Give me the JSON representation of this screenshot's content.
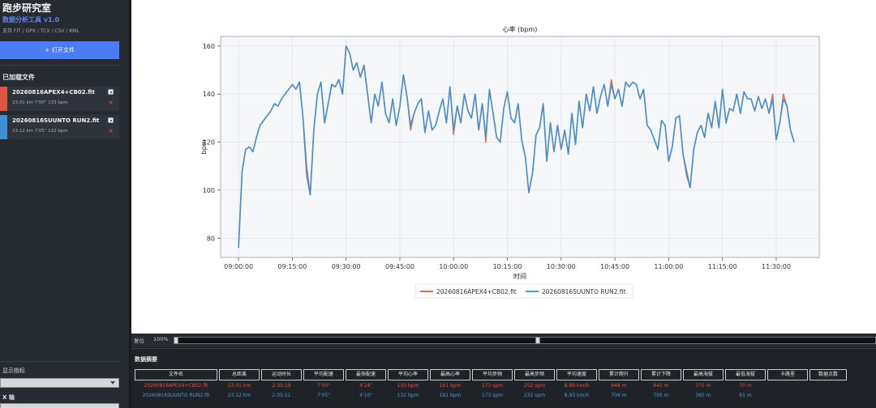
{
  "app": {
    "title": "跑步研究室",
    "subtitle": "数据分析工具 v1.0",
    "formats": "支持 FIT / GPX / TCX / CSV / KML",
    "open_button": "打开文件",
    "open_icon": "plus-icon"
  },
  "sidebar": {
    "loaded_title": "已加载文件",
    "files": [
      {
        "name": "20260816APEX4+CB02.fit",
        "meta": "23.01 km  7'00\"  133 bpm",
        "color": "#e0553f",
        "checked": true
      },
      {
        "name": "20260816SUUNTO RUN2.fit",
        "meta": "23.12 km  7'05\"  132 bpm",
        "color": "#3d8fd6",
        "checked": true
      }
    ],
    "metric_label": "显示指标",
    "metric_value": "",
    "xaxis_label": "X 轴",
    "xaxis_value": ""
  },
  "chart_data": {
    "type": "line",
    "title": "心率 (bpm)",
    "xlabel": "时间",
    "ylabel": "bpm",
    "x_ticks": [
      "09:00:00",
      "09:15:00",
      "09:30:00",
      "09:45:00",
      "10:00:00",
      "10:15:00",
      "10:30:00",
      "10:45:00",
      "11:00:00",
      "11:15:00",
      "11:30:00"
    ],
    "y_ticks": [
      80,
      100,
      120,
      140,
      160
    ],
    "xlim_min": [
      -5,
      162
    ],
    "ylim": [
      72,
      164
    ],
    "grid": true,
    "legend_position": "bottom-center",
    "series": [
      {
        "name": "20260816APEX4+CB02.fit",
        "color": "#e0553f",
        "x": [
          0,
          1,
          2,
          3,
          4,
          5,
          6,
          7,
          8,
          9,
          10,
          11,
          12,
          13,
          14,
          15,
          16,
          17,
          18,
          19,
          20,
          21,
          22,
          23,
          24,
          25,
          26,
          27,
          28,
          29,
          30,
          31,
          32,
          33,
          34,
          35,
          36,
          37,
          38,
          39,
          40,
          41,
          42,
          43,
          44,
          45,
          46,
          47,
          48,
          49,
          50,
          51,
          52,
          53,
          54,
          55,
          56,
          57,
          58,
          59,
          60,
          61,
          62,
          63,
          64,
          65,
          66,
          67,
          68,
          69,
          70,
          71,
          72,
          73,
          74,
          75,
          76,
          77,
          78,
          79,
          80,
          81,
          82,
          83,
          84,
          85,
          86,
          87,
          88,
          89,
          90,
          91,
          92,
          93,
          94,
          95,
          96,
          97,
          98,
          99,
          100,
          101,
          102,
          103,
          104,
          105,
          106,
          107,
          108,
          109,
          110,
          111,
          112,
          113,
          114,
          115,
          116,
          117,
          118,
          119,
          120,
          121,
          122,
          123,
          124,
          125,
          126,
          127,
          128,
          129,
          130,
          131,
          132,
          133,
          134,
          135,
          136,
          137,
          138,
          139,
          140,
          141,
          142,
          143,
          144,
          145,
          146,
          147,
          148,
          149,
          150,
          151,
          152,
          153,
          154,
          155
        ],
        "y": [
          76,
          108,
          117,
          118,
          116,
          122,
          127,
          129,
          131,
          133,
          136,
          135,
          138,
          140,
          142,
          144,
          142,
          145,
          130,
          110,
          98,
          125,
          140,
          145,
          128,
          136,
          144,
          143,
          146,
          140,
          160,
          157,
          150,
          153,
          147,
          152,
          140,
          128,
          140,
          135,
          145,
          132,
          128,
          138,
          127,
          135,
          148,
          139,
          125,
          132,
          136,
          138,
          124,
          133,
          125,
          127,
          133,
          138,
          128,
          143,
          123,
          135,
          128,
          140,
          133,
          130,
          140,
          125,
          136,
          120,
          142,
          132,
          122,
          120,
          134,
          141,
          130,
          128,
          136,
          121,
          114,
          99,
          107,
          123,
          126,
          136,
          112,
          128,
          116,
          127,
          117,
          125,
          115,
          132,
          119,
          137,
          126,
          140,
          133,
          143,
          132,
          139,
          144,
          135,
          146,
          138,
          142,
          135,
          145,
          143,
          145,
          144,
          138,
          142,
          127,
          125,
          121,
          117,
          129,
          127,
          112,
          118,
          130,
          131,
          115,
          106,
          101,
          117,
          124,
          127,
          122,
          132,
          126,
          137,
          126,
          142,
          128,
          134,
          133,
          140,
          132,
          141,
          138,
          138,
          133,
          139,
          134,
          138,
          132,
          140,
          121,
          128,
          140,
          135,
          125,
          120
        ]
      },
      {
        "name": "20260816SUUNTO RUN2.fit",
        "color": "#3d8fd6",
        "x": [
          0,
          1,
          2,
          3,
          4,
          5,
          6,
          7,
          8,
          9,
          10,
          11,
          12,
          13,
          14,
          15,
          16,
          17,
          18,
          19,
          20,
          21,
          22,
          23,
          24,
          25,
          26,
          27,
          28,
          29,
          30,
          31,
          32,
          33,
          34,
          35,
          36,
          37,
          38,
          39,
          40,
          41,
          42,
          43,
          44,
          45,
          46,
          47,
          48,
          49,
          50,
          51,
          52,
          53,
          54,
          55,
          56,
          57,
          58,
          59,
          60,
          61,
          62,
          63,
          64,
          65,
          66,
          67,
          68,
          69,
          70,
          71,
          72,
          73,
          74,
          75,
          76,
          77,
          78,
          79,
          80,
          81,
          82,
          83,
          84,
          85,
          86,
          87,
          88,
          89,
          90,
          91,
          92,
          93,
          94,
          95,
          96,
          97,
          98,
          99,
          100,
          101,
          102,
          103,
          104,
          105,
          106,
          107,
          108,
          109,
          110,
          111,
          112,
          113,
          114,
          115,
          116,
          117,
          118,
          119,
          120,
          121,
          122,
          123,
          124,
          125,
          126,
          127,
          128,
          129,
          130,
          131,
          132,
          133,
          134,
          135,
          136,
          137,
          138,
          139,
          140,
          141,
          142,
          143,
          144,
          145,
          146,
          147,
          148,
          149,
          150,
          151,
          152,
          153,
          154,
          155
        ],
        "y": [
          76,
          108,
          117,
          118,
          116,
          122,
          127,
          129,
          131,
          133,
          136,
          135,
          138,
          140,
          142,
          144,
          142,
          145,
          130,
          106,
          98,
          125,
          140,
          145,
          128,
          136,
          144,
          143,
          146,
          140,
          160,
          157,
          150,
          153,
          147,
          152,
          140,
          128,
          140,
          135,
          145,
          132,
          128,
          138,
          127,
          135,
          148,
          139,
          127,
          132,
          136,
          138,
          124,
          133,
          125,
          127,
          133,
          138,
          128,
          143,
          125,
          135,
          128,
          140,
          133,
          130,
          140,
          125,
          136,
          122,
          142,
          132,
          122,
          120,
          134,
          141,
          130,
          128,
          136,
          121,
          114,
          99,
          107,
          123,
          126,
          136,
          112,
          128,
          116,
          127,
          117,
          125,
          115,
          132,
          119,
          137,
          126,
          140,
          133,
          143,
          132,
          139,
          144,
          135,
          144,
          138,
          142,
          135,
          145,
          143,
          145,
          144,
          138,
          142,
          127,
          125,
          121,
          117,
          129,
          127,
          112,
          118,
          130,
          131,
          115,
          108,
          101,
          117,
          124,
          127,
          122,
          132,
          126,
          137,
          126,
          142,
          128,
          134,
          133,
          140,
          132,
          141,
          138,
          138,
          133,
          139,
          134,
          138,
          132,
          138,
          121,
          128,
          138,
          135,
          125,
          120
        ]
      }
    ]
  },
  "zoom": {
    "reset_label": "复位",
    "percent": "100%",
    "handle_left": 0.0,
    "handle_right": 0.515
  },
  "summary": {
    "title": "数据摘要",
    "headers": [
      "文件名",
      "总距离",
      "运动时长",
      "平均配速",
      "最快配速",
      "平均心率",
      "最高心率",
      "平均步频",
      "最高步频",
      "平均速度",
      "累计爬升",
      "累计下降",
      "最高海拔",
      "最低海拔",
      "卡路里",
      "数据点数"
    ],
    "rows": [
      [
        "20260816APEX4+CB02.fit",
        "23.01 km",
        "2:35:19",
        "7'00\"",
        "4'24\"",
        "133 bpm",
        "161 bpm",
        "173 spm",
        "252 spm",
        "8.89 km/h",
        "648 m",
        "641 m",
        "375 m",
        "70 m",
        "",
        ""
      ],
      [
        "20260816SUUNTO RUN2.fit",
        "23.12 km",
        "2:35:21",
        "7'05\"",
        "4'10\"",
        "132 bpm",
        "161 bpm",
        "173 spm",
        "232 spm",
        "8.93 km/h",
        "704 m",
        "705 m",
        "365 m",
        "61 m",
        "",
        ""
      ]
    ]
  }
}
